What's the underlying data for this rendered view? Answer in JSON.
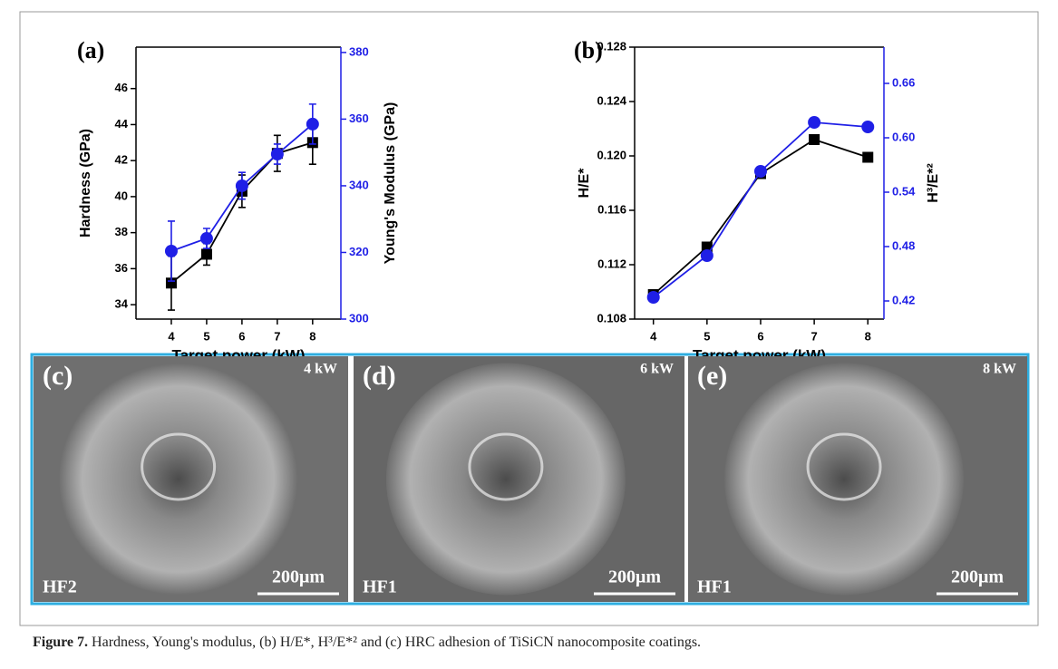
{
  "chart_data": [
    {
      "type": "line",
      "panel_label": "(a)",
      "x_label": "Target power (kW)",
      "y_label": "Hardness (GPa)",
      "y2_label": "Young's Modulus (GPa)",
      "x": [
        4,
        5,
        6,
        7,
        8
      ],
      "xlim": [
        3,
        8.8
      ],
      "xticks": [
        4,
        5,
        6,
        7,
        8
      ],
      "ylim": [
        33.2,
        48.3
      ],
      "yticks": [
        34,
        36,
        38,
        40,
        42,
        44,
        46
      ],
      "y2lim": [
        300,
        381.6
      ],
      "y2ticks": [
        300,
        320,
        340,
        360,
        380
      ],
      "series": [
        {
          "color": "#000000",
          "marker": "square",
          "values": [
            35.2,
            36.8,
            40.3,
            42.4,
            43.0
          ],
          "errors": [
            1.5,
            0.6,
            0.9,
            1.0,
            1.2
          ]
        },
        {
          "axis": "y2",
          "color": "#1f1fe6",
          "marker": "circle",
          "values": [
            320.4,
            324.2,
            340.0,
            349.5,
            358.5
          ],
          "errors": [
            9,
            3,
            4,
            3,
            6
          ]
        }
      ]
    },
    {
      "type": "line",
      "panel_label": "(b)",
      "x_label": "Target power (kW)",
      "y_label": "H/E*",
      "y2_label": "H³/E*²",
      "x": [
        4,
        5,
        6,
        7,
        8
      ],
      "xlim": [
        3.65,
        8.3
      ],
      "xticks": [
        4,
        5,
        6,
        7,
        8
      ],
      "ylim": [
        0.108,
        0.128
      ],
      "yticks": [
        0.108,
        0.112,
        0.116,
        {
          "value": 0.12,
          "label": "0.120"
        },
        0.124,
        0.128
      ],
      "y2lim": [
        0.4,
        0.7
      ],
      "y2ticks": [
        0.42,
        0.48,
        0.54,
        {
          "value": 0.6,
          "label": "0.60"
        },
        0.66
      ],
      "series": [
        {
          "color": "#000000",
          "marker": "square",
          "values": [
            0.1098,
            0.1133,
            0.1187,
            0.1212,
            0.1199
          ]
        },
        {
          "axis": "y2",
          "color": "#1f1fe6",
          "marker": "circle",
          "values": [
            0.424,
            0.47,
            0.563,
            0.617,
            0.612
          ]
        }
      ]
    }
  ],
  "panels": [
    {
      "label": "(c)",
      "power": "4 kW",
      "sample": "HF2",
      "scale": "200μm"
    },
    {
      "label": "(d)",
      "power": "6 kW",
      "sample": "HF1",
      "scale": "200μm"
    },
    {
      "label": "(e)",
      "power": "8 kW",
      "sample": "HF1",
      "scale": "200μm"
    }
  ],
  "caption": {
    "label": "Figure 7.",
    "text": "Hardness, Young's modulus, (b) H/E*, H³/E*² and (c) HRC adhesion of TiSiCN nanocomposite coatings."
  }
}
